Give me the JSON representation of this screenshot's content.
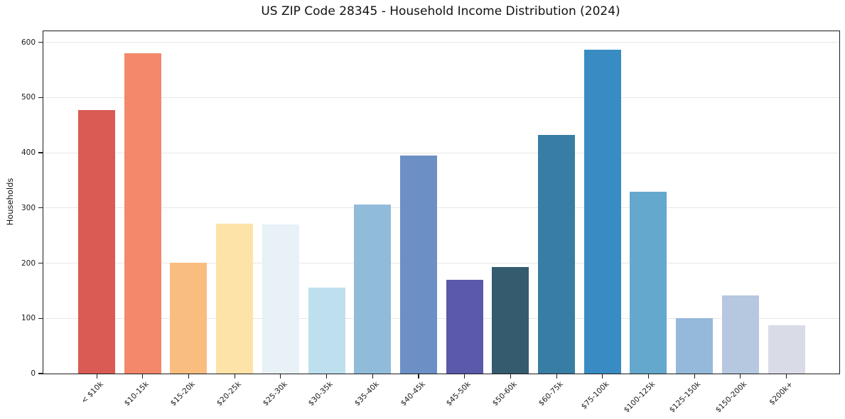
{
  "chart_data": {
    "type": "bar",
    "title": "US ZIP Code 28345 - Household Income Distribution (2024)",
    "xlabel": "",
    "ylabel": "Households",
    "ylim": [
      0,
      620
    ],
    "yticks": [
      0,
      100,
      200,
      300,
      400,
      500,
      600
    ],
    "grid": "horizontal-light",
    "legend": "none",
    "categories": [
      "< $10k",
      "$10-15k",
      "$15-20k",
      "$20-25k",
      "$25-30k",
      "$30-35k",
      "$35-40k",
      "$40-45k",
      "$45-50k",
      "$50-60k",
      "$60-75k",
      "$75-100k",
      "$100-125k",
      "$125-150k",
      "$150-200k",
      "$200k+"
    ],
    "values": [
      477,
      580,
      201,
      272,
      270,
      156,
      306,
      395,
      170,
      193,
      432,
      587,
      329,
      100,
      141,
      88
    ],
    "bar_colors": [
      "#d95b53",
      "#f4886b",
      "#fabd80",
      "#fde3a7",
      "#e7f1f6",
      "#bedfed",
      "#90bcd9",
      "#6c90c5",
      "#5b59a9",
      "#355c6e",
      "#387ea4",
      "#398cc3",
      "#64a8cd",
      "#95b9da",
      "#b6c7e0",
      "#d9dbe7"
    ]
  }
}
